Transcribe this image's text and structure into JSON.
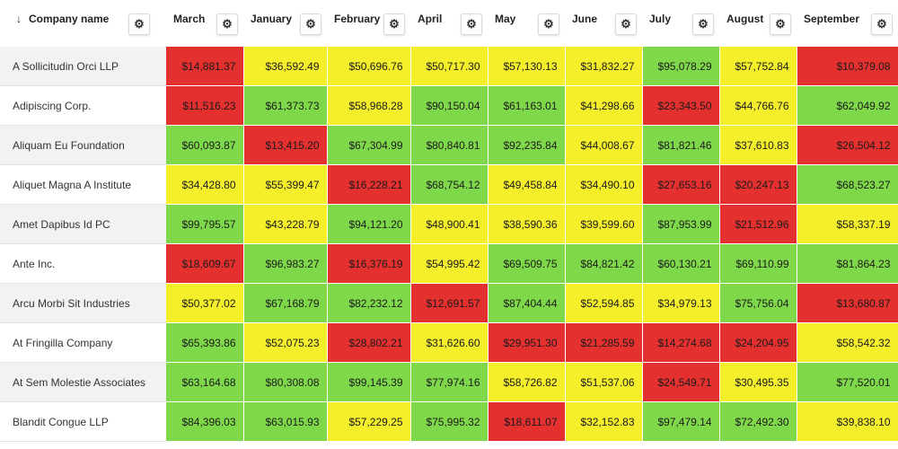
{
  "table": {
    "columns": [
      {
        "label": "Company name",
        "sort_icon": "arrow-down-icon",
        "settings_icon": "gear-icon"
      },
      {
        "label": "March",
        "settings_icon": "gear-icon"
      },
      {
        "label": "January",
        "settings_icon": "gear-icon"
      },
      {
        "label": "February",
        "settings_icon": "gear-icon"
      },
      {
        "label": "April",
        "settings_icon": "gear-icon"
      },
      {
        "label": "May",
        "settings_icon": "gear-icon"
      },
      {
        "label": "June",
        "settings_icon": "gear-icon"
      },
      {
        "label": "July",
        "settings_icon": "gear-icon"
      },
      {
        "label": "August",
        "settings_icon": "gear-icon"
      },
      {
        "label": "September",
        "settings_icon": "gear-icon"
      }
    ],
    "status_colors": {
      "red": "#e53030",
      "yellow": "#f4ef2a",
      "green": "#7fd84a"
    },
    "rows": [
      {
        "name": "A Sollicitudin Orci LLP",
        "cells": [
          {
            "value": "$14,881.37",
            "status": "red"
          },
          {
            "value": "$36,592.49",
            "status": "yellow"
          },
          {
            "value": "$50,696.76",
            "status": "yellow"
          },
          {
            "value": "$50,717.30",
            "status": "yellow"
          },
          {
            "value": "$57,130.13",
            "status": "yellow"
          },
          {
            "value": "$31,832.27",
            "status": "yellow"
          },
          {
            "value": "$95,078.29",
            "status": "green"
          },
          {
            "value": "$57,752.84",
            "status": "yellow"
          },
          {
            "value": "$10,379.08",
            "status": "red"
          }
        ]
      },
      {
        "name": "Adipiscing Corp.",
        "cells": [
          {
            "value": "$11,516.23",
            "status": "red"
          },
          {
            "value": "$61,373.73",
            "status": "green"
          },
          {
            "value": "$58,968.28",
            "status": "yellow"
          },
          {
            "value": "$90,150.04",
            "status": "green"
          },
          {
            "value": "$61,163.01",
            "status": "green"
          },
          {
            "value": "$41,298.66",
            "status": "yellow"
          },
          {
            "value": "$23,343.50",
            "status": "red"
          },
          {
            "value": "$44,766.76",
            "status": "yellow"
          },
          {
            "value": "$62,049.92",
            "status": "green"
          }
        ]
      },
      {
        "name": "Aliquam Eu Foundation",
        "cells": [
          {
            "value": "$60,093.87",
            "status": "green"
          },
          {
            "value": "$13,415.20",
            "status": "red"
          },
          {
            "value": "$67,304.99",
            "status": "green"
          },
          {
            "value": "$80,840.81",
            "status": "green"
          },
          {
            "value": "$92,235.84",
            "status": "green"
          },
          {
            "value": "$44,008.67",
            "status": "yellow"
          },
          {
            "value": "$81,821.46",
            "status": "green"
          },
          {
            "value": "$37,610.83",
            "status": "yellow"
          },
          {
            "value": "$26,504.12",
            "status": "red"
          }
        ]
      },
      {
        "name": "Aliquet Magna A Institute",
        "cells": [
          {
            "value": "$34,428.80",
            "status": "yellow"
          },
          {
            "value": "$55,399.47",
            "status": "yellow"
          },
          {
            "value": "$16,228.21",
            "status": "red"
          },
          {
            "value": "$68,754.12",
            "status": "green"
          },
          {
            "value": "$49,458.84",
            "status": "yellow"
          },
          {
            "value": "$34,490.10",
            "status": "yellow"
          },
          {
            "value": "$27,653.16",
            "status": "red"
          },
          {
            "value": "$20,247.13",
            "status": "red"
          },
          {
            "value": "$68,523.27",
            "status": "green"
          }
        ]
      },
      {
        "name": "Amet Dapibus Id PC",
        "cells": [
          {
            "value": "$99,795.57",
            "status": "green"
          },
          {
            "value": "$43,228.79",
            "status": "yellow"
          },
          {
            "value": "$94,121.20",
            "status": "green"
          },
          {
            "value": "$48,900.41",
            "status": "yellow"
          },
          {
            "value": "$38,590.36",
            "status": "yellow"
          },
          {
            "value": "$39,599.60",
            "status": "yellow"
          },
          {
            "value": "$87,953.99",
            "status": "green"
          },
          {
            "value": "$21,512.96",
            "status": "red"
          },
          {
            "value": "$58,337.19",
            "status": "yellow"
          }
        ]
      },
      {
        "name": "Ante Inc.",
        "cells": [
          {
            "value": "$18,609.67",
            "status": "red"
          },
          {
            "value": "$96,983.27",
            "status": "green"
          },
          {
            "value": "$16,376.19",
            "status": "red"
          },
          {
            "value": "$54,995.42",
            "status": "yellow"
          },
          {
            "value": "$69,509.75",
            "status": "green"
          },
          {
            "value": "$84,821.42",
            "status": "green"
          },
          {
            "value": "$60,130.21",
            "status": "green"
          },
          {
            "value": "$69,110.99",
            "status": "green"
          },
          {
            "value": "$81,864.23",
            "status": "green"
          }
        ]
      },
      {
        "name": "Arcu Morbi Sit Industries",
        "cells": [
          {
            "value": "$50,377.02",
            "status": "yellow"
          },
          {
            "value": "$67,168.79",
            "status": "green"
          },
          {
            "value": "$82,232.12",
            "status": "green"
          },
          {
            "value": "$12,691.57",
            "status": "red"
          },
          {
            "value": "$87,404.44",
            "status": "green"
          },
          {
            "value": "$52,594.85",
            "status": "yellow"
          },
          {
            "value": "$34,979.13",
            "status": "yellow"
          },
          {
            "value": "$75,756.04",
            "status": "green"
          },
          {
            "value": "$13,680.87",
            "status": "red"
          }
        ]
      },
      {
        "name": "At Fringilla Company",
        "cells": [
          {
            "value": "$65,393.86",
            "status": "green"
          },
          {
            "value": "$52,075.23",
            "status": "yellow"
          },
          {
            "value": "$28,802.21",
            "status": "red"
          },
          {
            "value": "$31,626.60",
            "status": "yellow"
          },
          {
            "value": "$29,951.30",
            "status": "red"
          },
          {
            "value": "$21,285.59",
            "status": "red"
          },
          {
            "value": "$14,274.68",
            "status": "red"
          },
          {
            "value": "$24,204.95",
            "status": "red"
          },
          {
            "value": "$58,542.32",
            "status": "yellow"
          }
        ]
      },
      {
        "name": "At Sem Molestie Associates",
        "cells": [
          {
            "value": "$63,164.68",
            "status": "green"
          },
          {
            "value": "$80,308.08",
            "status": "green"
          },
          {
            "value": "$99,145.39",
            "status": "green"
          },
          {
            "value": "$77,974.16",
            "status": "green"
          },
          {
            "value": "$58,726.82",
            "status": "yellow"
          },
          {
            "value": "$51,537.06",
            "status": "yellow"
          },
          {
            "value": "$24,549.71",
            "status": "red"
          },
          {
            "value": "$30,495.35",
            "status": "yellow"
          },
          {
            "value": "$77,520.01",
            "status": "green"
          }
        ]
      },
      {
        "name": "Blandit Congue LLP",
        "cells": [
          {
            "value": "$84,396.03",
            "status": "green"
          },
          {
            "value": "$63,015.93",
            "status": "green"
          },
          {
            "value": "$57,229.25",
            "status": "yellow"
          },
          {
            "value": "$75,995.32",
            "status": "green"
          },
          {
            "value": "$18,611.07",
            "status": "red"
          },
          {
            "value": "$32,152.83",
            "status": "yellow"
          },
          {
            "value": "$97,479.14",
            "status": "green"
          },
          {
            "value": "$72,492.30",
            "status": "green"
          },
          {
            "value": "$39,838.10",
            "status": "yellow"
          }
        ]
      }
    ]
  }
}
